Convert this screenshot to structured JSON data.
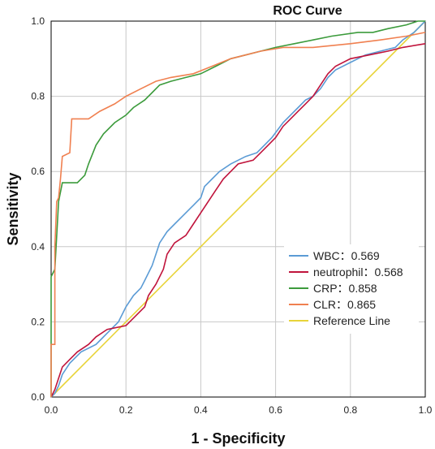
{
  "chart_data": {
    "type": "line",
    "title": "ROC Curve",
    "xlabel": "1 - Specificity",
    "ylabel": "Sensitivity",
    "xlim": [
      0,
      1
    ],
    "ylim": [
      0,
      1
    ],
    "xticks": [
      "0.0",
      "0.2",
      "0.4",
      "0.6",
      "0.8",
      "1.0"
    ],
    "yticks": [
      "0.0",
      "0.2",
      "0.4",
      "0.6",
      "0.8",
      "1.0"
    ],
    "grid": true,
    "legend_position": "bottom-right",
    "series": [
      {
        "name": "WBC：0.569",
        "color": "#5b9bd5",
        "points": [
          [
            0,
            0
          ],
          [
            0.01,
            0.01
          ],
          [
            0.02,
            0.03
          ],
          [
            0.03,
            0.06
          ],
          [
            0.05,
            0.09
          ],
          [
            0.08,
            0.12
          ],
          [
            0.12,
            0.14
          ],
          [
            0.15,
            0.17
          ],
          [
            0.18,
            0.2
          ],
          [
            0.2,
            0.24
          ],
          [
            0.22,
            0.27
          ],
          [
            0.24,
            0.29
          ],
          [
            0.25,
            0.31
          ],
          [
            0.27,
            0.35
          ],
          [
            0.28,
            0.38
          ],
          [
            0.29,
            0.41
          ],
          [
            0.31,
            0.44
          ],
          [
            0.33,
            0.46
          ],
          [
            0.35,
            0.48
          ],
          [
            0.38,
            0.51
          ],
          [
            0.4,
            0.53
          ],
          [
            0.41,
            0.56
          ],
          [
            0.43,
            0.58
          ],
          [
            0.45,
            0.6
          ],
          [
            0.48,
            0.62
          ],
          [
            0.52,
            0.64
          ],
          [
            0.55,
            0.65
          ],
          [
            0.57,
            0.67
          ],
          [
            0.59,
            0.69
          ],
          [
            0.62,
            0.73
          ],
          [
            0.64,
            0.75
          ],
          [
            0.66,
            0.77
          ],
          [
            0.68,
            0.79
          ],
          [
            0.7,
            0.8
          ],
          [
            0.72,
            0.82
          ],
          [
            0.74,
            0.85
          ],
          [
            0.76,
            0.87
          ],
          [
            0.8,
            0.89
          ],
          [
            0.84,
            0.91
          ],
          [
            0.88,
            0.92
          ],
          [
            0.92,
            0.93
          ],
          [
            0.94,
            0.95
          ],
          [
            0.97,
            0.97
          ],
          [
            0.99,
            0.99
          ],
          [
            1,
            1
          ]
        ]
      },
      {
        "name": "neutrophil：0.568",
        "color": "#c0143c",
        "points": [
          [
            0,
            0
          ],
          [
            0.01,
            0.02
          ],
          [
            0.02,
            0.05
          ],
          [
            0.03,
            0.08
          ],
          [
            0.05,
            0.1
          ],
          [
            0.07,
            0.12
          ],
          [
            0.1,
            0.14
          ],
          [
            0.12,
            0.16
          ],
          [
            0.15,
            0.18
          ],
          [
            0.2,
            0.19
          ],
          [
            0.22,
            0.21
          ],
          [
            0.25,
            0.24
          ],
          [
            0.26,
            0.27
          ],
          [
            0.28,
            0.3
          ],
          [
            0.3,
            0.34
          ],
          [
            0.31,
            0.38
          ],
          [
            0.33,
            0.41
          ],
          [
            0.36,
            0.43
          ],
          [
            0.38,
            0.46
          ],
          [
            0.4,
            0.49
          ],
          [
            0.42,
            0.52
          ],
          [
            0.44,
            0.55
          ],
          [
            0.46,
            0.58
          ],
          [
            0.48,
            0.6
          ],
          [
            0.5,
            0.62
          ],
          [
            0.54,
            0.63
          ],
          [
            0.56,
            0.65
          ],
          [
            0.58,
            0.67
          ],
          [
            0.6,
            0.69
          ],
          [
            0.62,
            0.72
          ],
          [
            0.64,
            0.74
          ],
          [
            0.66,
            0.76
          ],
          [
            0.68,
            0.78
          ],
          [
            0.7,
            0.8
          ],
          [
            0.72,
            0.83
          ],
          [
            0.74,
            0.86
          ],
          [
            0.76,
            0.88
          ],
          [
            0.8,
            0.9
          ],
          [
            0.85,
            0.91
          ],
          [
            0.9,
            0.92
          ],
          [
            0.94,
            0.93
          ],
          [
            1,
            0.94
          ]
        ]
      },
      {
        "name": "CRP：0.858",
        "color": "#3c9b3c",
        "points": [
          [
            0,
            0
          ],
          [
            0,
            0.32
          ],
          [
            0.01,
            0.34
          ],
          [
            0.02,
            0.52
          ],
          [
            0.03,
            0.57
          ],
          [
            0.07,
            0.57
          ],
          [
            0.09,
            0.59
          ],
          [
            0.1,
            0.62
          ],
          [
            0.12,
            0.67
          ],
          [
            0.14,
            0.7
          ],
          [
            0.17,
            0.73
          ],
          [
            0.2,
            0.75
          ],
          [
            0.22,
            0.77
          ],
          [
            0.25,
            0.79
          ],
          [
            0.27,
            0.81
          ],
          [
            0.29,
            0.83
          ],
          [
            0.32,
            0.84
          ],
          [
            0.36,
            0.85
          ],
          [
            0.4,
            0.86
          ],
          [
            0.44,
            0.88
          ],
          [
            0.48,
            0.9
          ],
          [
            0.52,
            0.91
          ],
          [
            0.56,
            0.92
          ],
          [
            0.6,
            0.93
          ],
          [
            0.65,
            0.94
          ],
          [
            0.7,
            0.95
          ],
          [
            0.75,
            0.96
          ],
          [
            0.82,
            0.97
          ],
          [
            0.86,
            0.97
          ],
          [
            0.9,
            0.98
          ],
          [
            0.95,
            0.99
          ],
          [
            0.98,
            1
          ],
          [
            1,
            1
          ]
        ]
      },
      {
        "name": "CLR：0.865",
        "color": "#f08050",
        "points": [
          [
            0,
            0
          ],
          [
            0,
            0.14
          ],
          [
            0.01,
            0.14
          ],
          [
            0.01,
            0.4
          ],
          [
            0.015,
            0.52
          ],
          [
            0.02,
            0.53
          ],
          [
            0.025,
            0.58
          ],
          [
            0.03,
            0.64
          ],
          [
            0.05,
            0.65
          ],
          [
            0.055,
            0.74
          ],
          [
            0.1,
            0.74
          ],
          [
            0.13,
            0.76
          ],
          [
            0.17,
            0.78
          ],
          [
            0.2,
            0.8
          ],
          [
            0.24,
            0.82
          ],
          [
            0.28,
            0.84
          ],
          [
            0.32,
            0.85
          ],
          [
            0.38,
            0.86
          ],
          [
            0.43,
            0.88
          ],
          [
            0.48,
            0.9
          ],
          [
            0.52,
            0.91
          ],
          [
            0.56,
            0.92
          ],
          [
            0.62,
            0.93
          ],
          [
            0.7,
            0.93
          ],
          [
            0.8,
            0.94
          ],
          [
            0.88,
            0.95
          ],
          [
            0.95,
            0.96
          ],
          [
            1,
            0.97
          ]
        ]
      },
      {
        "name": "Reference Line",
        "color": "#e8d43a",
        "points": [
          [
            0,
            0
          ],
          [
            1,
            1
          ]
        ]
      }
    ]
  }
}
